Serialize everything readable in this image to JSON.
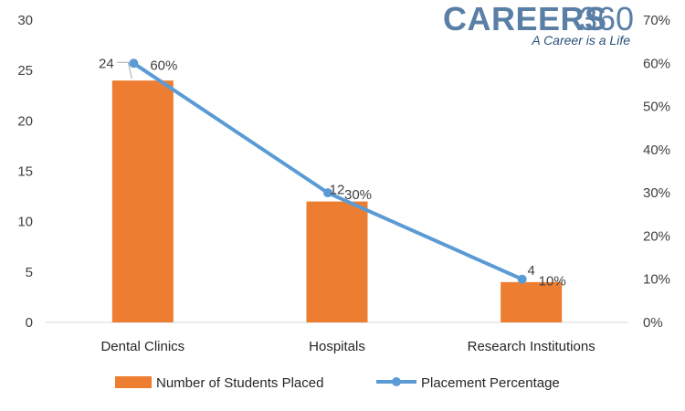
{
  "brand": {
    "name": "CAREERS",
    "number": "360",
    "tagline": "A Career is a Life",
    "color": "#5a7fa6"
  },
  "chart_data": {
    "type": "bar",
    "categories": [
      "Dental Clinics",
      "Hospitals",
      "Research Institutions"
    ],
    "series": [
      {
        "name": "Number of Students Placed",
        "kind": "bar",
        "axis": "left",
        "color": "#ed7d31",
        "values": [
          24,
          12,
          4
        ],
        "labels": [
          "24",
          "12",
          "4"
        ]
      },
      {
        "name": "Placement Percentage",
        "kind": "line",
        "axis": "right",
        "color": "#5b9bd5",
        "values": [
          60,
          30,
          10
        ],
        "labels": [
          "60%",
          "30%",
          "10%"
        ]
      }
    ],
    "y_left": {
      "min": 0,
      "max": 30,
      "ticks": [
        "0",
        "5",
        "10",
        "15",
        "20",
        "25",
        "30"
      ]
    },
    "y_right": {
      "min": 0,
      "max": 70,
      "ticks": [
        "0%",
        "10%",
        "20%",
        "30%",
        "40%",
        "50%",
        "60%",
        "70%"
      ]
    },
    "title": "",
    "xlabel": "",
    "ylabel": "",
    "grid": false,
    "legend_position": "bottom"
  }
}
